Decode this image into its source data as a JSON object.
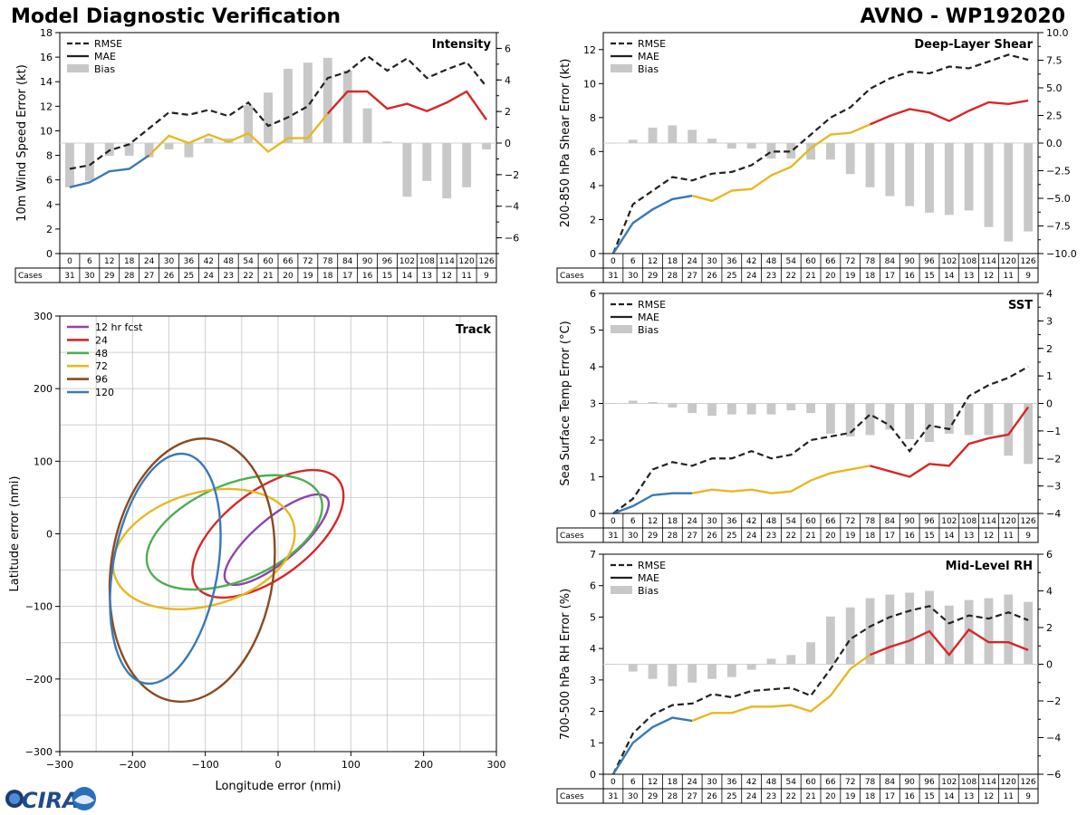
{
  "header": {
    "title": "Model Diagnostic Verification",
    "storm": "AVNO - WP192020"
  },
  "legend": {
    "rmse": "RMSE",
    "mae": "MAE",
    "bias": "Bias"
  },
  "table": {
    "cases_label": "Cases",
    "hours": [
      0,
      6,
      12,
      18,
      24,
      30,
      36,
      42,
      48,
      54,
      60,
      66,
      72,
      78,
      84,
      90,
      96,
      102,
      108,
      114,
      120,
      126
    ],
    "cases": [
      31,
      30,
      29,
      28,
      27,
      26,
      25,
      24,
      23,
      22,
      21,
      20,
      19,
      18,
      17,
      16,
      15,
      14,
      13,
      12,
      11,
      9
    ]
  },
  "colors": {
    "seg1": "#3a7ab5",
    "seg2": "#e7b823",
    "seg3": "#d62728",
    "bias": "#c8c8c8",
    "rmse": "#222222"
  },
  "logo": {
    "text": "CIRA"
  },
  "chart_data": [
    {
      "type": "line",
      "id": "intensity",
      "title": "Intensity",
      "ylabel": "10m Wind Speed Error (kt)",
      "ylim": [
        0,
        18
      ],
      "yticks": [
        0,
        2,
        4,
        6,
        8,
        10,
        12,
        14,
        16,
        18
      ],
      "y2lim": [
        -7,
        7
      ],
      "y2ticks": [
        -6,
        -4,
        -2,
        0,
        2,
        4,
        6
      ],
      "rmse": [
        6.9,
        7.2,
        8.4,
        8.9,
        10.2,
        11.5,
        11.3,
        11.7,
        11.2,
        12.3,
        10.4,
        11.1,
        12.0,
        14.3,
        14.8,
        16.1,
        14.9,
        15.9,
        14.3,
        15.0,
        15.6,
        13.6
      ],
      "mae": [
        5.4,
        5.8,
        6.7,
        6.9,
        8.0,
        9.6,
        9.0,
        9.7,
        9.1,
        9.8,
        8.3,
        9.4,
        9.4,
        11.4,
        13.2,
        13.2,
        11.8,
        12.2,
        11.6,
        12.3,
        13.2,
        10.9
      ],
      "bias": [
        -2.8,
        -2.4,
        -0.8,
        -0.8,
        -0.9,
        -0.4,
        -0.9,
        0.3,
        0.3,
        2.4,
        3.2,
        4.7,
        5.1,
        5.4,
        4.6,
        2.2,
        0.1,
        -3.4,
        -2.4,
        -3.5,
        -2.8,
        -0.4
      ]
    },
    {
      "type": "line",
      "id": "shear",
      "title": "Deep-Layer Shear",
      "ylabel": "200-850 hPa Shear Error (kt)",
      "ylim": [
        0,
        13
      ],
      "yticks": [
        0,
        2,
        4,
        6,
        8,
        10,
        12
      ],
      "y2lim": [
        -10,
        10
      ],
      "y2ticks": [
        -10.0,
        -7.5,
        -5.0,
        -2.5,
        0.0,
        2.5,
        5.0,
        7.5,
        10.0
      ],
      "rmse": [
        0.0,
        2.9,
        3.7,
        4.5,
        4.3,
        4.7,
        4.8,
        5.2,
        6.0,
        6.0,
        7.0,
        8.0,
        8.6,
        9.7,
        10.3,
        10.7,
        10.6,
        11.0,
        10.9,
        11.3,
        11.7,
        11.4
      ],
      "mae": [
        0.0,
        1.8,
        2.6,
        3.2,
        3.4,
        3.1,
        3.7,
        3.8,
        4.6,
        5.1,
        6.2,
        7.0,
        7.1,
        7.6,
        8.1,
        8.5,
        8.3,
        7.8,
        8.4,
        8.9,
        8.8,
        9.0
      ],
      "bias": [
        0.0,
        0.3,
        1.4,
        1.6,
        1.2,
        0.4,
        -0.5,
        -0.5,
        -1.4,
        -1.4,
        -1.5,
        -1.5,
        -2.8,
        -4.0,
        -4.8,
        -5.7,
        -6.3,
        -6.5,
        -6.1,
        -7.6,
        -8.9,
        -8.0
      ]
    },
    {
      "type": "line",
      "id": "sst",
      "title": "SST",
      "ylabel": "Sea Surface Temp Error (°C)",
      "ylim": [
        0,
        6
      ],
      "yticks": [
        0,
        1,
        2,
        3,
        4,
        5,
        6
      ],
      "y2lim": [
        -4,
        4
      ],
      "y2ticks": [
        -4,
        -3,
        -2,
        -1,
        0,
        1,
        2,
        3,
        4
      ],
      "rmse": [
        0.0,
        0.4,
        1.2,
        1.4,
        1.3,
        1.5,
        1.5,
        1.7,
        1.5,
        1.6,
        2.0,
        2.1,
        2.2,
        2.7,
        2.4,
        1.7,
        2.4,
        2.3,
        3.2,
        3.5,
        3.7,
        4.0
      ],
      "mae": [
        0.0,
        0.2,
        0.5,
        0.55,
        0.55,
        0.65,
        0.6,
        0.65,
        0.55,
        0.6,
        0.9,
        1.1,
        1.2,
        1.3,
        1.15,
        1.0,
        1.35,
        1.3,
        1.9,
        2.05,
        2.15,
        2.9
      ],
      "bias": [
        0.0,
        0.1,
        0.05,
        -0.15,
        -0.35,
        -0.45,
        -0.4,
        -0.4,
        -0.4,
        -0.25,
        -0.35,
        -1.1,
        -1.2,
        -1.15,
        -0.95,
        -1.3,
        -1.4,
        -1.1,
        -1.15,
        -1.15,
        -1.9,
        -2.2
      ]
    },
    {
      "type": "line",
      "id": "rh",
      "title": "Mid-Level RH",
      "ylabel": "700-500 hPa RH Error (%)",
      "ylim": [
        0,
        7
      ],
      "yticks": [
        0,
        1,
        2,
        3,
        4,
        5,
        6,
        7
      ],
      "y2lim": [
        -6,
        6
      ],
      "y2ticks": [
        -6,
        -4,
        -2,
        0,
        2,
        4,
        6
      ],
      "rmse": [
        0.0,
        1.3,
        1.9,
        2.2,
        2.25,
        2.55,
        2.45,
        2.65,
        2.7,
        2.75,
        2.5,
        3.35,
        4.3,
        4.7,
        5.0,
        5.2,
        5.35,
        4.8,
        5.05,
        4.95,
        5.15,
        4.9
      ],
      "mae": [
        0.0,
        1.0,
        1.5,
        1.8,
        1.7,
        1.95,
        1.95,
        2.15,
        2.15,
        2.2,
        2.0,
        2.5,
        3.35,
        3.8,
        4.05,
        4.25,
        4.55,
        3.8,
        4.6,
        4.2,
        4.2,
        3.95
      ],
      "bias": [
        0.0,
        -0.4,
        -0.8,
        -1.2,
        -1.0,
        -0.8,
        -0.7,
        -0.3,
        0.3,
        0.5,
        1.2,
        2.6,
        3.1,
        3.6,
        3.8,
        3.9,
        4.0,
        3.2,
        3.5,
        3.6,
        3.8,
        3.4
      ]
    },
    {
      "type": "scatter",
      "id": "track",
      "title": "Track",
      "xlabel": "Longitude error (nmi)",
      "ylabel": "Latitude error (nmi)",
      "xlim": [
        -300,
        300
      ],
      "ylim": [
        -300,
        300
      ],
      "xticks": [
        -300,
        -200,
        -100,
        0,
        100,
        200,
        300
      ],
      "yticks": [
        -300,
        -200,
        -100,
        0,
        100,
        200,
        300
      ],
      "grid_step": 50,
      "series": [
        {
          "name": "12 hr fcst",
          "color": "#8e44ad",
          "cx": -2,
          "cy": -8,
          "semi_major": 90,
          "semi_minor": 30,
          "angle_deg": 40
        },
        {
          "name": "24",
          "color": "#d62728",
          "cx": -14,
          "cy": 0,
          "semi_major": 122,
          "semi_minor": 60,
          "angle_deg": 37
        },
        {
          "name": "48",
          "color": "#4caf50",
          "cx": -60,
          "cy": 2,
          "semi_major": 128,
          "semi_minor": 66,
          "angle_deg": 23
        },
        {
          "name": "72",
          "color": "#e7b823",
          "cx": -102,
          "cy": -21,
          "semi_major": 128,
          "semi_minor": 78,
          "angle_deg": 16
        },
        {
          "name": "96",
          "color": "#8b4a22",
          "cx": -118,
          "cy": -50,
          "semi_major": 182,
          "semi_minor": 112,
          "angle_deg": 82
        },
        {
          "name": "120",
          "color": "#3a7ab5",
          "cx": -155,
          "cy": -48,
          "semi_major": 160,
          "semi_minor": 72,
          "angle_deg": 80
        }
      ]
    }
  ]
}
